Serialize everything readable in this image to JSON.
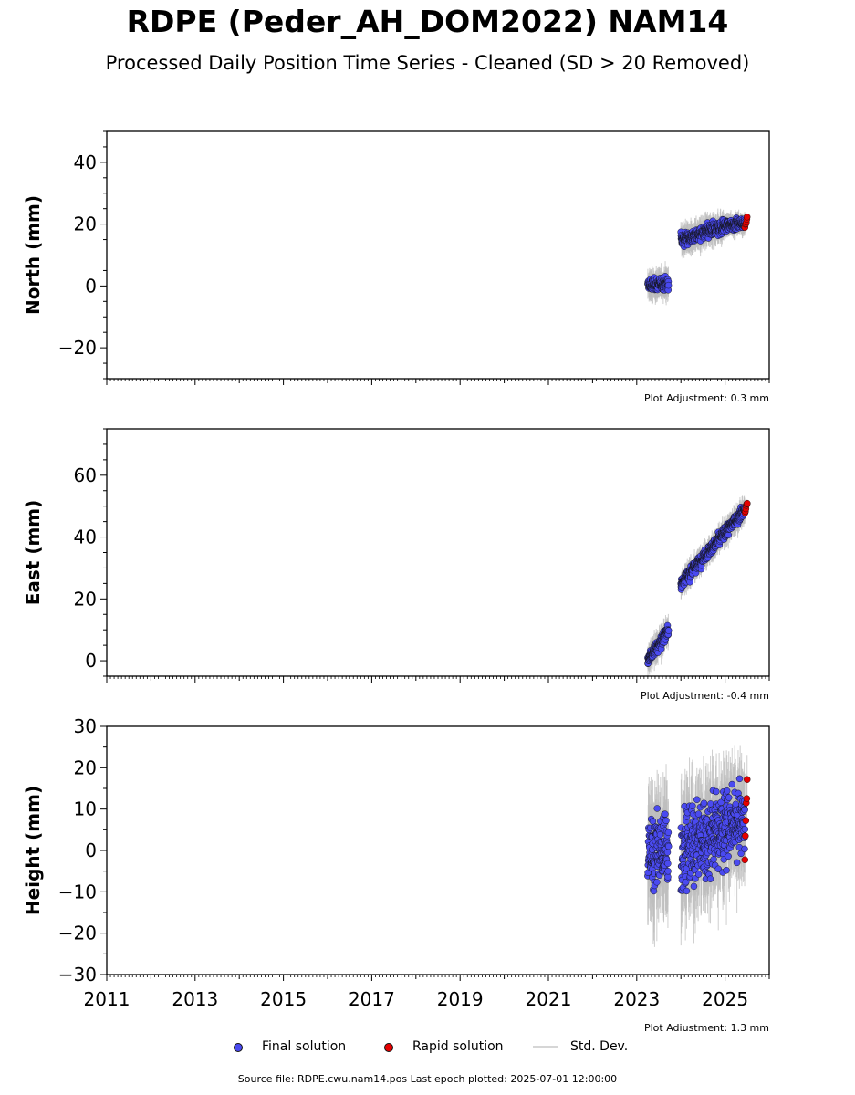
{
  "header": {
    "title": "RDPE (Peder_AH_DOM2022) NAM14",
    "subtitle": "Processed Daily Position Time Series - Cleaned (SD > 20 Removed)"
  },
  "legend": {
    "final_label": "Final solution",
    "rapid_label": "Rapid solution",
    "std_label": "Std. Dev."
  },
  "footer": {
    "note": "Source file: RDPE.cwu.nam14.pos  Last epoch plotted: 2025-07-01 12:00:00"
  },
  "colors": {
    "final": "#4a4af0",
    "rapid": "#e60000",
    "stddev": "#bdbdbd"
  },
  "chart_data": [
    {
      "type": "scatter",
      "ylabel": "North (mm)",
      "xlim": [
        2011,
        2026
      ],
      "ylim": [
        -30,
        50
      ],
      "yticks": [
        -20,
        0,
        20,
        40
      ],
      "note": "Plot Adjustment: 0.3 mm",
      "segments": [
        {
          "name": "Final solution",
          "x_start": 2023.25,
          "x_end": 2023.72,
          "y_start": 0.0,
          "y_end": 1.0,
          "noise": 1.8,
          "sd": 3.5
        },
        {
          "name": "Final solution",
          "x_start": 2024.0,
          "x_end": 2024.97,
          "y_start": 15.0,
          "y_end": 19.0,
          "noise": 1.8,
          "sd": 3.5
        },
        {
          "name": "Final solution",
          "x_start": 2024.97,
          "x_end": 2025.45,
          "y_start": 19.5,
          "y_end": 20.5,
          "noise": 1.4,
          "sd": 2.5
        },
        {
          "name": "Rapid solution",
          "x_start": 2025.45,
          "x_end": 2025.5,
          "y_start": 19.5,
          "y_end": 22.0,
          "noise": 1.0,
          "sd": 1.5
        }
      ]
    },
    {
      "type": "scatter",
      "ylabel": "East (mm)",
      "xlim": [
        2011,
        2026
      ],
      "ylim": [
        -5,
        75
      ],
      "yticks": [
        0,
        20,
        40,
        60
      ],
      "note": "Plot Adjustment: -0.4 mm",
      "segments": [
        {
          "name": "Final solution",
          "x_start": 2023.25,
          "x_end": 2023.72,
          "y_start": 0.0,
          "y_end": 10.0,
          "noise": 1.6,
          "sd": 3.5
        },
        {
          "name": "Final solution",
          "x_start": 2024.0,
          "x_end": 2025.45,
          "y_start": 25.0,
          "y_end": 49.0,
          "noise": 1.6,
          "sd": 3.0
        },
        {
          "name": "Rapid solution",
          "x_start": 2025.45,
          "x_end": 2025.5,
          "y_start": 48.0,
          "y_end": 51.0,
          "noise": 0.8,
          "sd": 1.5
        }
      ]
    },
    {
      "type": "scatter",
      "ylabel": "Height (mm)",
      "xlim": [
        2011,
        2026
      ],
      "ylim": [
        -30,
        30
      ],
      "yticks": [
        -30,
        -20,
        -10,
        0,
        10,
        20,
        30
      ],
      "xticks": [
        2011,
        2013,
        2015,
        2017,
        2019,
        2021,
        2023,
        2025
      ],
      "note": "Plot Adjustment: 1.3 mm",
      "segments": [
        {
          "name": "Final solution",
          "x_start": 2023.25,
          "x_end": 2023.72,
          "y_start": 0.0,
          "y_end": 0.0,
          "noise": 7.5,
          "sd": 10.0
        },
        {
          "name": "Final solution",
          "x_start": 2024.0,
          "x_end": 2024.97,
          "y_start": 0.0,
          "y_end": 5.0,
          "noise": 8.0,
          "sd": 10.0
        },
        {
          "name": "Final solution",
          "x_start": 2024.97,
          "x_end": 2025.45,
          "y_start": 6.0,
          "y_end": 7.0,
          "noise": 6.5,
          "sd": 9.0
        },
        {
          "name": "Rapid solution",
          "x_start": 2025.45,
          "x_end": 2025.5,
          "y_start": 2.0,
          "y_end": 16.0,
          "noise": 3.0,
          "sd": 4.0
        }
      ]
    }
  ]
}
